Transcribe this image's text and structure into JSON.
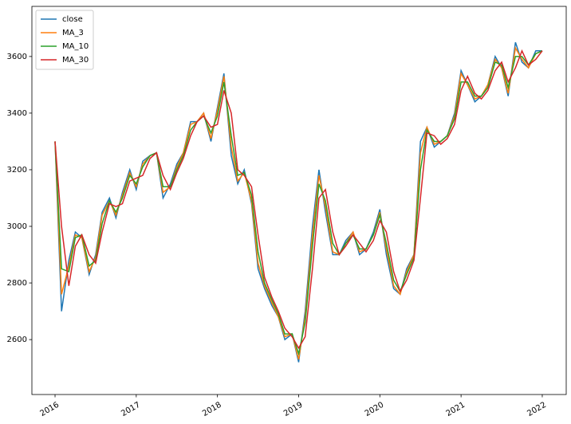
{
  "chart_data": {
    "type": "line",
    "x": [
      2016,
      2016.08,
      2016.17,
      2016.25,
      2016.33,
      2016.42,
      2016.5,
      2016.58,
      2016.67,
      2016.75,
      2016.83,
      2016.92,
      2017,
      2017.08,
      2017.17,
      2017.25,
      2017.33,
      2017.42,
      2017.5,
      2017.58,
      2017.67,
      2017.75,
      2017.83,
      2017.92,
      2018,
      2018.08,
      2018.17,
      2018.25,
      2018.33,
      2018.42,
      2018.5,
      2018.58,
      2018.67,
      2018.75,
      2018.83,
      2018.92,
      2019,
      2019.08,
      2019.17,
      2019.25,
      2019.33,
      2019.42,
      2019.5,
      2019.58,
      2019.67,
      2019.75,
      2019.83,
      2019.92,
      2020,
      2020.08,
      2020.17,
      2020.25,
      2020.33,
      2020.42,
      2020.5,
      2020.58,
      2020.67,
      2020.75,
      2020.83,
      2020.92,
      2021,
      2021.08,
      2021.17,
      2021.25,
      2021.33,
      2021.42,
      2021.5,
      2021.58,
      2021.67,
      2021.75,
      2021.83,
      2021.92,
      2022
    ],
    "series": [
      {
        "name": "close",
        "color": "#1f77b4",
        "values": [
          3300,
          2700,
          2880,
          2980,
          2960,
          2830,
          2900,
          3050,
          3100,
          3030,
          3120,
          3200,
          3130,
          3230,
          3250,
          3260,
          3100,
          3150,
          3220,
          3260,
          3370,
          3370,
          3400,
          3300,
          3420,
          3540,
          3250,
          3150,
          3200,
          3080,
          2850,
          2780,
          2720,
          2680,
          2600,
          2620,
          2520,
          2700,
          3000,
          3200,
          3050,
          2900,
          2900,
          2950,
          2980,
          2900,
          2920,
          2980,
          3060,
          2900,
          2780,
          2760,
          2850,
          2900,
          3300,
          3350,
          3280,
          3300,
          3320,
          3400,
          3550,
          3500,
          3440,
          3460,
          3500,
          3600,
          3560,
          3460,
          3650,
          3580,
          3560,
          3620,
          3620
        ]
      },
      {
        "name": "MA_3",
        "color": "#ff7f0e",
        "values": [
          3300,
          2760,
          2860,
          2970,
          2960,
          2840,
          2890,
          3040,
          3090,
          3040,
          3110,
          3190,
          3140,
          3220,
          3250,
          3260,
          3120,
          3140,
          3210,
          3260,
          3360,
          3370,
          3400,
          3310,
          3410,
          3530,
          3280,
          3160,
          3190,
          3090,
          2870,
          2790,
          2730,
          2680,
          2610,
          2620,
          2530,
          2680,
          2970,
          3180,
          3070,
          2910,
          2900,
          2940,
          2980,
          2910,
          2920,
          2970,
          3050,
          2920,
          2790,
          2760,
          2840,
          2900,
          3260,
          3350,
          3290,
          3300,
          3320,
          3390,
          3540,
          3500,
          3450,
          3460,
          3500,
          3590,
          3560,
          3470,
          3630,
          3590,
          3560,
          3610,
          3620
        ]
      },
      {
        "name": "MA_10",
        "color": "#2ca02c",
        "values": [
          3300,
          2850,
          2840,
          2960,
          2970,
          2860,
          2880,
          3010,
          3090,
          3050,
          3100,
          3180,
          3150,
          3210,
          3250,
          3260,
          3140,
          3140,
          3200,
          3250,
          3340,
          3370,
          3390,
          3330,
          3390,
          3510,
          3320,
          3180,
          3190,
          3110,
          2910,
          2800,
          2740,
          2690,
          2620,
          2620,
          2550,
          2660,
          2930,
          3150,
          3090,
          2940,
          2900,
          2940,
          2970,
          2920,
          2920,
          2970,
          3040,
          2940,
          2810,
          2770,
          2830,
          2890,
          3200,
          3340,
          3300,
          3300,
          3320,
          3380,
          3510,
          3510,
          3460,
          3460,
          3490,
          3580,
          3570,
          3490,
          3600,
          3600,
          3570,
          3610,
          3620
        ]
      },
      {
        "name": "MA_30",
        "color": "#d62728",
        "values": [
          3300,
          3000,
          2790,
          2930,
          2970,
          2900,
          2870,
          2980,
          3080,
          3070,
          3080,
          3160,
          3170,
          3180,
          3240,
          3260,
          3180,
          3130,
          3190,
          3240,
          3320,
          3370,
          3390,
          3350,
          3360,
          3480,
          3400,
          3200,
          3180,
          3140,
          2970,
          2820,
          2750,
          2700,
          2640,
          2610,
          2570,
          2610,
          2850,
          3100,
          3130,
          2980,
          2900,
          2930,
          2970,
          2940,
          2910,
          2950,
          3020,
          2980,
          2840,
          2770,
          2810,
          2880,
          3100,
          3330,
          3320,
          3290,
          3310,
          3360,
          3480,
          3530,
          3470,
          3450,
          3480,
          3550,
          3580,
          3510,
          3560,
          3620,
          3570,
          3590,
          3620
        ]
      }
    ],
    "xlim": [
      2015.715,
      2022.295
    ],
    "xticks": [
      2016,
      2017,
      2018,
      2019,
      2020,
      2021,
      2022
    ],
    "ylim": [
      2406,
      3777
    ],
    "yticks": [
      2600,
      2800,
      3000,
      3200,
      3400,
      3600
    ],
    "legend": "upper left"
  }
}
